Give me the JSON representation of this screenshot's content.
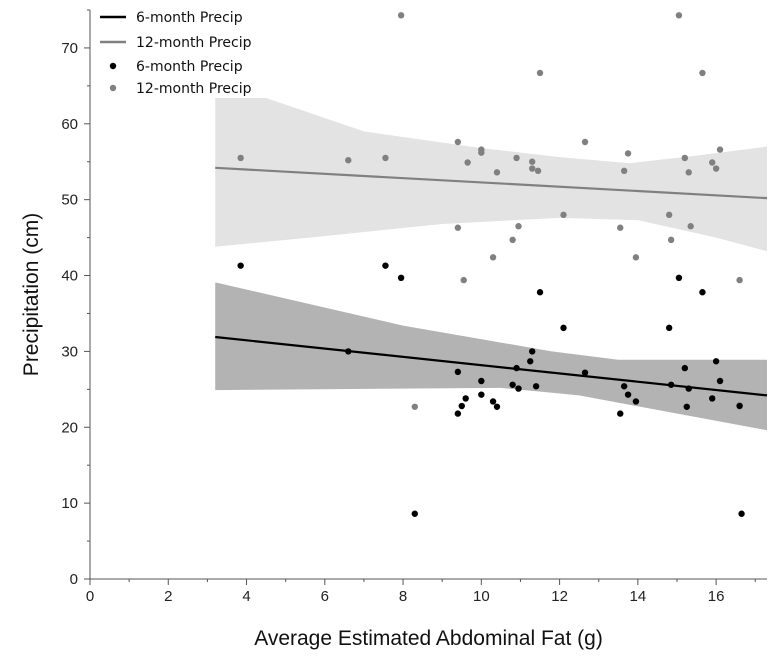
{
  "chart_data": {
    "type": "scatter",
    "title": "",
    "xlabel": "Average Estimated Abdominal Fat (g)",
    "ylabel": "Precipitation (cm)",
    "xlim": [
      0,
      17.3
    ],
    "ylim": [
      0,
      75
    ],
    "xticks": [
      0,
      2,
      4,
      6,
      8,
      10,
      12,
      14,
      16
    ],
    "yticks": [
      0,
      10,
      20,
      30,
      40,
      50,
      60,
      70
    ],
    "grid": false,
    "legend_position": "top-left",
    "legend": [
      {
        "label": "6-month Precip",
        "kind": "line",
        "color": "#000000"
      },
      {
        "label": "12-month Precip",
        "kind": "line",
        "color": "#808080"
      },
      {
        "label": "6-month Precip",
        "kind": "point",
        "color": "#000000"
      },
      {
        "label": "12-month Precip",
        "kind": "point",
        "color": "#808080"
      }
    ],
    "series": [
      {
        "name": "6-month Precip",
        "color": "#000000",
        "band_color": "#b3b3b3",
        "points": [
          [
            3.85,
            41.3
          ],
          [
            6.6,
            30.0
          ],
          [
            7.55,
            41.3
          ],
          [
            7.95,
            39.7
          ],
          [
            8.3,
            8.6
          ],
          [
            9.4,
            27.3
          ],
          [
            9.4,
            21.8
          ],
          [
            9.5,
            22.8
          ],
          [
            9.6,
            23.8
          ],
          [
            10.0,
            26.1
          ],
          [
            10.0,
            24.3
          ],
          [
            10.3,
            23.4
          ],
          [
            10.4,
            22.7
          ],
          [
            10.8,
            25.6
          ],
          [
            10.9,
            27.8
          ],
          [
            10.95,
            25.1
          ],
          [
            11.25,
            28.7
          ],
          [
            11.3,
            30.0
          ],
          [
            11.4,
            25.4
          ],
          [
            11.5,
            37.8
          ],
          [
            12.1,
            33.1
          ],
          [
            12.65,
            27.2
          ],
          [
            13.55,
            21.8
          ],
          [
            13.65,
            25.4
          ],
          [
            13.75,
            24.3
          ],
          [
            13.95,
            23.4
          ],
          [
            14.8,
            33.1
          ],
          [
            14.85,
            25.6
          ],
          [
            15.05,
            39.7
          ],
          [
            15.2,
            27.8
          ],
          [
            15.25,
            22.7
          ],
          [
            15.3,
            25.1
          ],
          [
            15.65,
            37.8
          ],
          [
            15.9,
            23.8
          ],
          [
            16.0,
            28.7
          ],
          [
            16.1,
            26.1
          ],
          [
            16.6,
            22.8
          ],
          [
            16.65,
            8.6
          ]
        ],
        "fit": {
          "x": [
            3.2,
            17.3
          ],
          "y": [
            31.9,
            24.2
          ]
        },
        "ci_upper": [
          [
            3.2,
            39.1
          ],
          [
            8.0,
            33.4
          ],
          [
            11.8,
            30.0
          ],
          [
            13.5,
            28.9
          ],
          [
            17.3,
            28.9
          ]
        ],
        "ci_lower": [
          [
            3.2,
            24.9
          ],
          [
            5.5,
            25.0
          ],
          [
            10.5,
            25.2
          ],
          [
            12.5,
            24.2
          ],
          [
            17.3,
            19.6
          ]
        ]
      },
      {
        "name": "12-month Precip",
        "color": "#808080",
        "band_color": "#e3e3e3",
        "points": [
          [
            3.85,
            55.5
          ],
          [
            6.6,
            55.2
          ],
          [
            7.55,
            55.5
          ],
          [
            7.95,
            74.3
          ],
          [
            8.3,
            22.7
          ],
          [
            9.4,
            57.6
          ],
          [
            9.4,
            46.3
          ],
          [
            9.55,
            39.4
          ],
          [
            9.65,
            54.9
          ],
          [
            10.0,
            56.2
          ],
          [
            10.0,
            56.6
          ],
          [
            10.3,
            42.4
          ],
          [
            10.4,
            53.6
          ],
          [
            10.8,
            44.7
          ],
          [
            10.9,
            55.5
          ],
          [
            10.95,
            46.5
          ],
          [
            11.3,
            55.0
          ],
          [
            11.3,
            54.1
          ],
          [
            11.45,
            53.8
          ],
          [
            11.5,
            66.7
          ],
          [
            12.1,
            48.0
          ],
          [
            12.65,
            57.6
          ],
          [
            13.55,
            46.3
          ],
          [
            13.65,
            53.8
          ],
          [
            13.75,
            56.1
          ],
          [
            13.95,
            42.4
          ],
          [
            14.8,
            48.0
          ],
          [
            14.85,
            44.7
          ],
          [
            15.05,
            74.3
          ],
          [
            15.2,
            55.5
          ],
          [
            15.3,
            53.6
          ],
          [
            15.35,
            46.5
          ],
          [
            15.65,
            66.7
          ],
          [
            15.9,
            54.9
          ],
          [
            16.0,
            54.1
          ],
          [
            16.1,
            56.6
          ],
          [
            16.6,
            39.4
          ],
          [
            16.6,
            22.9
          ]
        ],
        "fit": {
          "x": [
            3.2,
            17.3
          ],
          "y": [
            54.2,
            50.2
          ]
        },
        "ci_upper": [
          [
            3.2,
            63.4
          ],
          [
            4.5,
            63.4
          ],
          [
            7.0,
            59.0
          ],
          [
            10.0,
            56.8
          ],
          [
            12.0,
            55.6
          ],
          [
            13.8,
            54.8
          ],
          [
            15.5,
            55.8
          ],
          [
            17.3,
            57.0
          ]
        ],
        "ci_lower": [
          [
            3.2,
            43.8
          ],
          [
            6.0,
            45.2
          ],
          [
            9.0,
            46.8
          ],
          [
            12.0,
            47.6
          ],
          [
            14.0,
            47.3
          ],
          [
            16.0,
            45.0
          ],
          [
            17.3,
            43.2
          ]
        ]
      }
    ]
  }
}
